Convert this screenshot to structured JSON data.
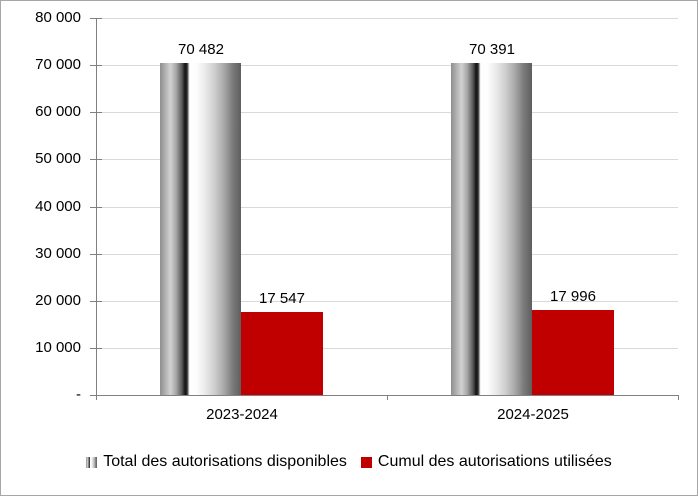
{
  "chart_data": {
    "type": "bar",
    "title": "",
    "xlabel": "",
    "ylabel": "",
    "categories": [
      "2023-2024",
      "2024-2025"
    ],
    "series": [
      {
        "name": "Total des autorisations disponibles",
        "values": [
          70482,
          70391
        ],
        "labels": [
          "70 482",
          "70 391"
        ],
        "fill_style": "metallic_gray_gradient",
        "color": "#808080"
      },
      {
        "name": "Cumul des autorisations utilisées",
        "values": [
          17547,
          17996
        ],
        "labels": [
          "17 547",
          "17 996"
        ],
        "fill_style": "solid",
        "color": "#C00000"
      }
    ],
    "ylim": [
      0,
      80000
    ],
    "ytick_step": 10000,
    "ytick_labels": [
      "-",
      "10 000",
      "20 000",
      "30 000",
      "40 000",
      "50 000",
      "60 000",
      "70 000",
      "80 000"
    ],
    "grid": true,
    "legend_position": "bottom"
  },
  "colors": {
    "series_red": "#C00000",
    "axis": "#808080",
    "gridline": "#D9D9D9",
    "chart_border": "#A6A6A6",
    "text": "#000000",
    "background": "#FFFFFF"
  }
}
